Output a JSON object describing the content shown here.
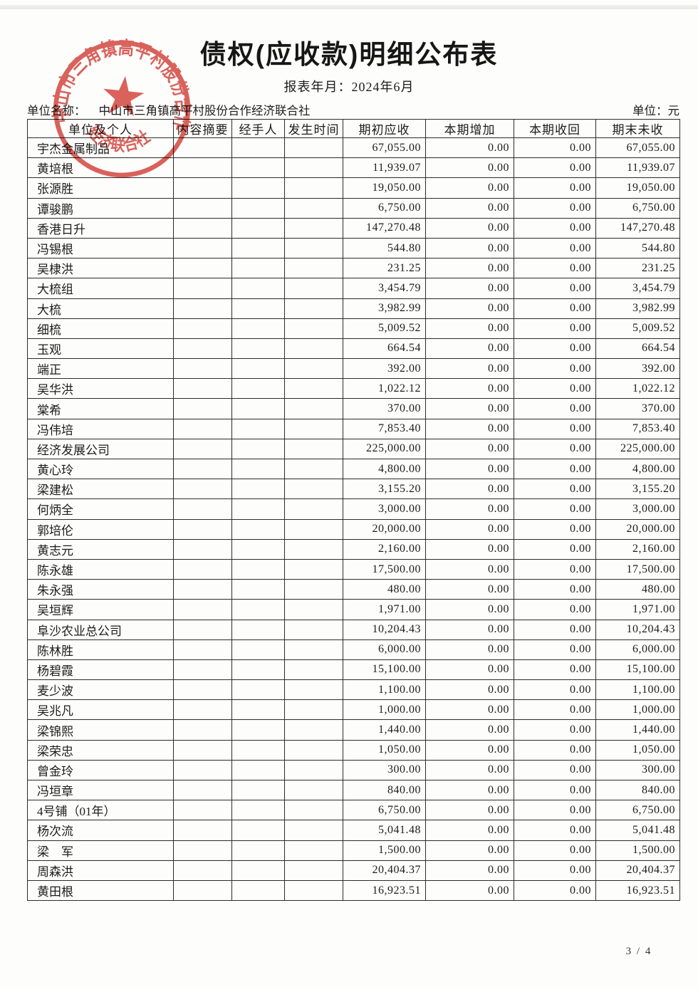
{
  "page": {
    "title": "债权(应收款)明细公布表",
    "report_period_label": "报表年月：",
    "report_period_value": "2024年6月",
    "unit_name_label": "单位名称：",
    "unit_name": "中山市三角镇高平村股份合作经济联合社",
    "currency_unit_label": "单位：元",
    "page_number": "3 / 4"
  },
  "stamp": {
    "arc_text": "中山市三角镇高平村股份合作",
    "bottom_text": "经济联合社",
    "color": "#d4453e"
  },
  "table": {
    "columns": [
      "单位及个人",
      "内容摘要",
      "经手人",
      "发生时间",
      "期初应收",
      "本期增加",
      "本期收回",
      "期末未收"
    ],
    "rows": [
      {
        "name": "宇杰金属制品",
        "summary": "",
        "handler": "",
        "date": "",
        "opening": "67,055.00",
        "increase": "0.00",
        "recovered": "0.00",
        "closing": "67,055.00"
      },
      {
        "name": "黄培根",
        "summary": "",
        "handler": "",
        "date": "",
        "opening": "11,939.07",
        "increase": "0.00",
        "recovered": "0.00",
        "closing": "11,939.07"
      },
      {
        "name": "张源胜",
        "summary": "",
        "handler": "",
        "date": "",
        "opening": "19,050.00",
        "increase": "0.00",
        "recovered": "0.00",
        "closing": "19,050.00"
      },
      {
        "name": "谭骏鹏",
        "summary": "",
        "handler": "",
        "date": "",
        "opening": "6,750.00",
        "increase": "0.00",
        "recovered": "0.00",
        "closing": "6,750.00"
      },
      {
        "name": "香港日升",
        "summary": "",
        "handler": "",
        "date": "",
        "opening": "147,270.48",
        "increase": "0.00",
        "recovered": "0.00",
        "closing": "147,270.48"
      },
      {
        "name": "冯锡根",
        "summary": "",
        "handler": "",
        "date": "",
        "opening": "544.80",
        "increase": "0.00",
        "recovered": "0.00",
        "closing": "544.80"
      },
      {
        "name": "吴棣洪",
        "summary": "",
        "handler": "",
        "date": "",
        "opening": "231.25",
        "increase": "0.00",
        "recovered": "0.00",
        "closing": "231.25"
      },
      {
        "name": "大梳组",
        "summary": "",
        "handler": "",
        "date": "",
        "opening": "3,454.79",
        "increase": "0.00",
        "recovered": "0.00",
        "closing": "3,454.79"
      },
      {
        "name": "大梳",
        "summary": "",
        "handler": "",
        "date": "",
        "opening": "3,982.99",
        "increase": "0.00",
        "recovered": "0.00",
        "closing": "3,982.99"
      },
      {
        "name": "细梳",
        "summary": "",
        "handler": "",
        "date": "",
        "opening": "5,009.52",
        "increase": "0.00",
        "recovered": "0.00",
        "closing": "5,009.52"
      },
      {
        "name": "玉观",
        "summary": "",
        "handler": "",
        "date": "",
        "opening": "664.54",
        "increase": "0.00",
        "recovered": "0.00",
        "closing": "664.54"
      },
      {
        "name": "端正",
        "summary": "",
        "handler": "",
        "date": "",
        "opening": "392.00",
        "increase": "0.00",
        "recovered": "0.00",
        "closing": "392.00"
      },
      {
        "name": "吴华洪",
        "summary": "",
        "handler": "",
        "date": "",
        "opening": "1,022.12",
        "increase": "0.00",
        "recovered": "0.00",
        "closing": "1,022.12"
      },
      {
        "name": "棠希",
        "summary": "",
        "handler": "",
        "date": "",
        "opening": "370.00",
        "increase": "0.00",
        "recovered": "0.00",
        "closing": "370.00"
      },
      {
        "name": "冯伟培",
        "summary": "",
        "handler": "",
        "date": "",
        "opening": "7,853.40",
        "increase": "0.00",
        "recovered": "0.00",
        "closing": "7,853.40"
      },
      {
        "name": "经济发展公司",
        "summary": "",
        "handler": "",
        "date": "",
        "opening": "225,000.00",
        "increase": "0.00",
        "recovered": "0.00",
        "closing": "225,000.00"
      },
      {
        "name": "黄心玲",
        "summary": "",
        "handler": "",
        "date": "",
        "opening": "4,800.00",
        "increase": "0.00",
        "recovered": "0.00",
        "closing": "4,800.00"
      },
      {
        "name": "梁建松",
        "summary": "",
        "handler": "",
        "date": "",
        "opening": "3,155.20",
        "increase": "0.00",
        "recovered": "0.00",
        "closing": "3,155.20"
      },
      {
        "name": "何炳全",
        "summary": "",
        "handler": "",
        "date": "",
        "opening": "3,000.00",
        "increase": "0.00",
        "recovered": "0.00",
        "closing": "3,000.00"
      },
      {
        "name": "郭培伦",
        "summary": "",
        "handler": "",
        "date": "",
        "opening": "20,000.00",
        "increase": "0.00",
        "recovered": "0.00",
        "closing": "20,000.00"
      },
      {
        "name": "黄志元",
        "summary": "",
        "handler": "",
        "date": "",
        "opening": "2,160.00",
        "increase": "0.00",
        "recovered": "0.00",
        "closing": "2,160.00"
      },
      {
        "name": "陈永雄",
        "summary": "",
        "handler": "",
        "date": "",
        "opening": "17,500.00",
        "increase": "0.00",
        "recovered": "0.00",
        "closing": "17,500.00"
      },
      {
        "name": "朱永强",
        "summary": "",
        "handler": "",
        "date": "",
        "opening": "480.00",
        "increase": "0.00",
        "recovered": "0.00",
        "closing": "480.00"
      },
      {
        "name": "吴垣辉",
        "summary": "",
        "handler": "",
        "date": "",
        "opening": "1,971.00",
        "increase": "0.00",
        "recovered": "0.00",
        "closing": "1,971.00"
      },
      {
        "name": "阜沙农业总公司",
        "summary": "",
        "handler": "",
        "date": "",
        "opening": "10,204.43",
        "increase": "0.00",
        "recovered": "0.00",
        "closing": "10,204.43"
      },
      {
        "name": "陈林胜",
        "summary": "",
        "handler": "",
        "date": "",
        "opening": "6,000.00",
        "increase": "0.00",
        "recovered": "0.00",
        "closing": "6,000.00"
      },
      {
        "name": "杨碧霞",
        "summary": "",
        "handler": "",
        "date": "",
        "opening": "15,100.00",
        "increase": "0.00",
        "recovered": "0.00",
        "closing": "15,100.00"
      },
      {
        "name": "麦少波",
        "summary": "",
        "handler": "",
        "date": "",
        "opening": "1,100.00",
        "increase": "0.00",
        "recovered": "0.00",
        "closing": "1,100.00"
      },
      {
        "name": "吴兆凡",
        "summary": "",
        "handler": "",
        "date": "",
        "opening": "1,000.00",
        "increase": "0.00",
        "recovered": "0.00",
        "closing": "1,000.00"
      },
      {
        "name": "梁锦熙",
        "summary": "",
        "handler": "",
        "date": "",
        "opening": "1,440.00",
        "increase": "0.00",
        "recovered": "0.00",
        "closing": "1,440.00"
      },
      {
        "name": "梁荣忠",
        "summary": "",
        "handler": "",
        "date": "",
        "opening": "1,050.00",
        "increase": "0.00",
        "recovered": "0.00",
        "closing": "1,050.00"
      },
      {
        "name": "曾金玲",
        "summary": "",
        "handler": "",
        "date": "",
        "opening": "300.00",
        "increase": "0.00",
        "recovered": "0.00",
        "closing": "300.00"
      },
      {
        "name": "冯垣章",
        "summary": "",
        "handler": "",
        "date": "",
        "opening": "840.00",
        "increase": "0.00",
        "recovered": "0.00",
        "closing": "840.00"
      },
      {
        "name": "4号铺（01年）",
        "summary": "",
        "handler": "",
        "date": "",
        "opening": "6,750.00",
        "increase": "0.00",
        "recovered": "0.00",
        "closing": "6,750.00"
      },
      {
        "name": "杨次流",
        "summary": "",
        "handler": "",
        "date": "",
        "opening": "5,041.48",
        "increase": "0.00",
        "recovered": "0.00",
        "closing": "5,041.48"
      },
      {
        "name": "梁　军",
        "summary": "",
        "handler": "",
        "date": "",
        "opening": "1,500.00",
        "increase": "0.00",
        "recovered": "0.00",
        "closing": "1,500.00"
      },
      {
        "name": "周森洪",
        "summary": "",
        "handler": "",
        "date": "",
        "opening": "20,404.37",
        "increase": "0.00",
        "recovered": "0.00",
        "closing": "20,404.37"
      },
      {
        "name": "黄田根",
        "summary": "",
        "handler": "",
        "date": "",
        "opening": "16,923.51",
        "increase": "0.00",
        "recovered": "0.00",
        "closing": "16,923.51"
      }
    ]
  }
}
